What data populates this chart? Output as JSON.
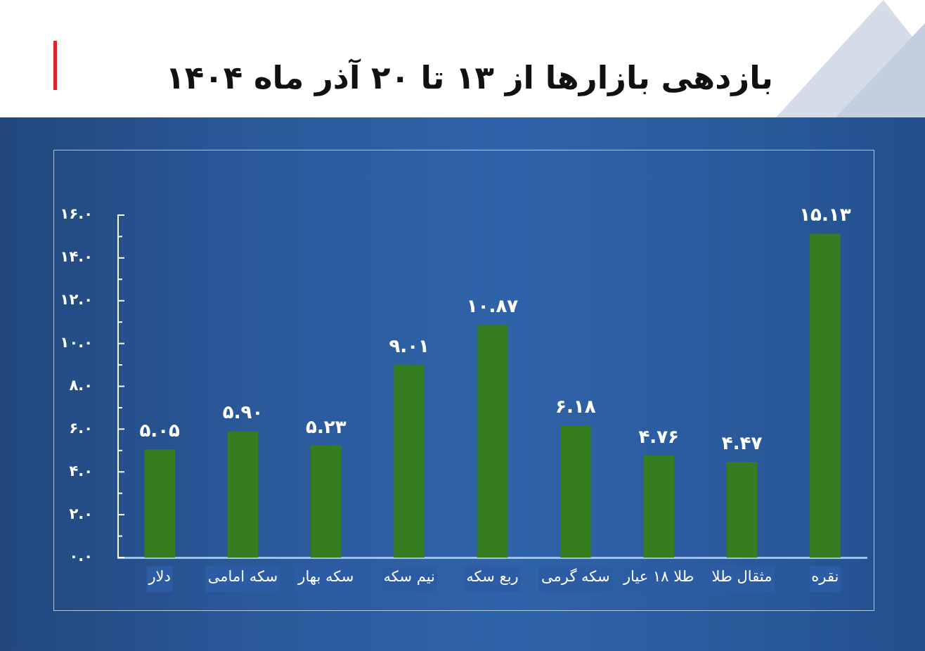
{
  "chart_data": {
    "type": "bar",
    "title": "بازدهی بازارها از ۱۳ تا ۲۰ آذر ماه ۱۴۰۴",
    "categories": [
      "دلار",
      "سکه امامی",
      "سکه بهار",
      "نیم سکه",
      "ربع سکه",
      "سکه گرمی",
      "طلا ۱۸ عیار",
      "مثقال طلا",
      "نقره"
    ],
    "values": [
      5.05,
      5.9,
      5.23,
      9.01,
      10.87,
      6.18,
      4.76,
      4.47,
      15.13
    ],
    "value_labels": [
      "۵.۰۵",
      "۵.۹۰",
      "۵.۲۳",
      "۹.۰۱",
      "۱۰.۸۷",
      "۶.۱۸",
      "۴.۷۶",
      "۴.۴۷",
      "۱۵.۱۳"
    ],
    "color": "#367d22",
    "ylim": [
      0,
      16
    ],
    "yticks": [
      {
        "value": 0,
        "label": "۰.۰"
      },
      {
        "value": 1,
        "label": null
      },
      {
        "value": 2,
        "label": "۲.۰"
      },
      {
        "value": 3,
        "label": null
      },
      {
        "value": 4,
        "label": "۴.۰"
      },
      {
        "value": 5,
        "label": null
      },
      {
        "value": 6,
        "label": "۶.۰"
      },
      {
        "value": 7,
        "label": null
      },
      {
        "value": 8,
        "label": "۸.۰"
      },
      {
        "value": 9,
        "label": null
      },
      {
        "value": 10,
        "label": "۱۰.۰"
      },
      {
        "value": 11,
        "label": null
      },
      {
        "value": 12,
        "label": "۱۲.۰"
      },
      {
        "value": 13,
        "label": null
      },
      {
        "value": 14,
        "label": "۱۴.۰"
      },
      {
        "value": 15,
        "label": null
      },
      {
        "value": 16,
        "label": "۱۶.۰"
      }
    ]
  }
}
